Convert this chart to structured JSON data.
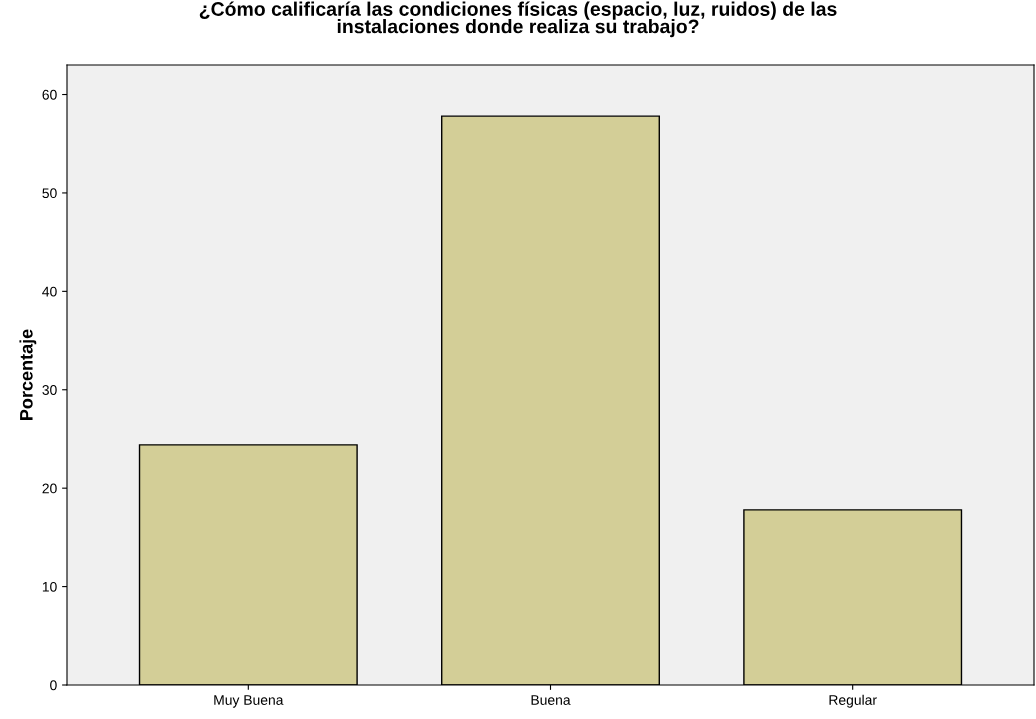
{
  "chart_data": {
    "type": "bar",
    "title": "¿Cómo calificaría las condiciones físicas (espacio, luz, ruidos) de las\ninstalaciones donde realiza su trabajo?",
    "ylabel": "Porcentaje",
    "categories": [
      "Muy Buena",
      "Buena",
      "Regular"
    ],
    "values": [
      24.4,
      57.8,
      17.8
    ],
    "color": "#d3ce97",
    "ylim": [
      0,
      63
    ],
    "yticks": [
      0,
      10,
      20,
      30,
      40,
      50,
      60
    ],
    "grid": false,
    "legend": false
  }
}
